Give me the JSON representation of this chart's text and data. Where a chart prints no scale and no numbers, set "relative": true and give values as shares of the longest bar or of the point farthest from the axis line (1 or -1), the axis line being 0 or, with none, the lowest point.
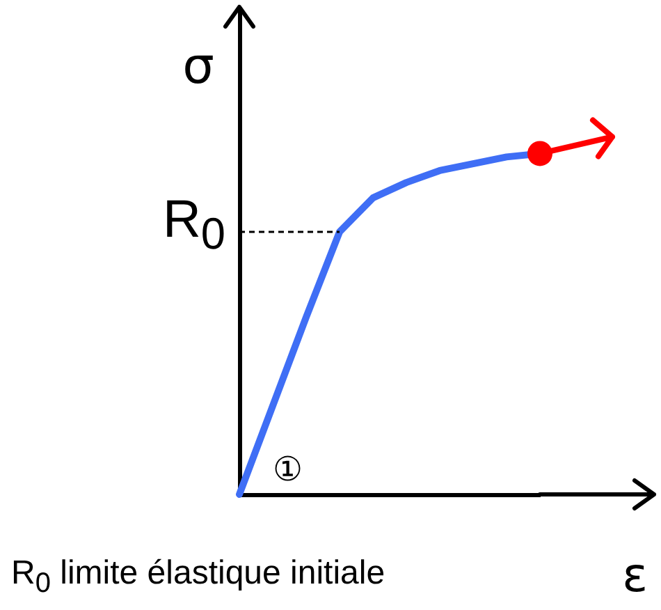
{
  "chart_data": {
    "type": "line",
    "relative": true,
    "xlabel": "ε",
    "ylabel": "σ",
    "categories": [
      null,
      null,
      null,
      null,
      null,
      null,
      null,
      null,
      null,
      null
    ],
    "series": [
      {
        "color": "#3f6ef5",
        "values": [
          0,
          0.26,
          0.52,
          0.77,
          0.87,
          0.915,
          0.95,
          0.97,
          0.99,
          1
        ]
      }
    ],
    "ref_lines": [
      {
        "axis": "y",
        "value": 0.77,
        "label": "R$_{0}$",
        "line_style": "dashed",
        "color": "#000000"
      }
    ],
    "annotations": [
      "①",
      "R$_{0}$ limite élastique initiale"
    ]
  }
}
